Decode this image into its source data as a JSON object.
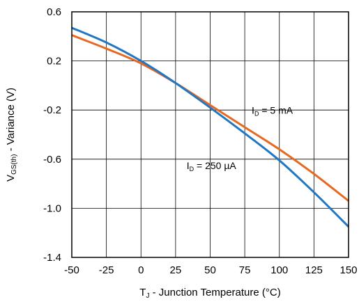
{
  "chart_data": {
    "type": "line",
    "title": "",
    "xlabel": {
      "main": "T",
      "sub": "J",
      "rest": " - Junction Temperature (°C)"
    },
    "ylabel": {
      "main": "V",
      "sub": "GS(th)",
      "rest": " - Variance (V)"
    },
    "xlim": [
      -50,
      150
    ],
    "ylim": [
      -1.4,
      0.6
    ],
    "xticks": [
      -50,
      -25,
      0,
      25,
      50,
      75,
      100,
      125,
      150
    ],
    "yticks": [
      0.6,
      0.2,
      -0.2,
      -0.6,
      -1.0,
      -1.4
    ],
    "xtick_labels": [
      "-50",
      "-25",
      "0",
      "25",
      "50",
      "75",
      "100",
      "125",
      "150"
    ],
    "ytick_labels": [
      "0.6",
      "0.2",
      "-0.2",
      "-0.6",
      "-1.0",
      "-1.4"
    ],
    "grid": true,
    "series": [
      {
        "name": {
          "main": "I",
          "sub": "D",
          "rest": " = 5 mA"
        },
        "color": "#e8681e",
        "x": [
          -50,
          -25,
          0,
          25,
          50,
          75,
          100,
          125,
          150
        ],
        "y": [
          0.41,
          0.3,
          0.18,
          0.02,
          -0.16,
          -0.34,
          -0.52,
          -0.72,
          -0.94
        ]
      },
      {
        "name": {
          "main": "I",
          "sub": "D",
          "rest": " = 250 µA"
        },
        "color": "#2277c4",
        "x": [
          -50,
          -25,
          0,
          25,
          50,
          75,
          100,
          125,
          150
        ],
        "y": [
          0.47,
          0.35,
          0.2,
          0.02,
          -0.18,
          -0.39,
          -0.61,
          -0.87,
          -1.15
        ]
      }
    ]
  }
}
